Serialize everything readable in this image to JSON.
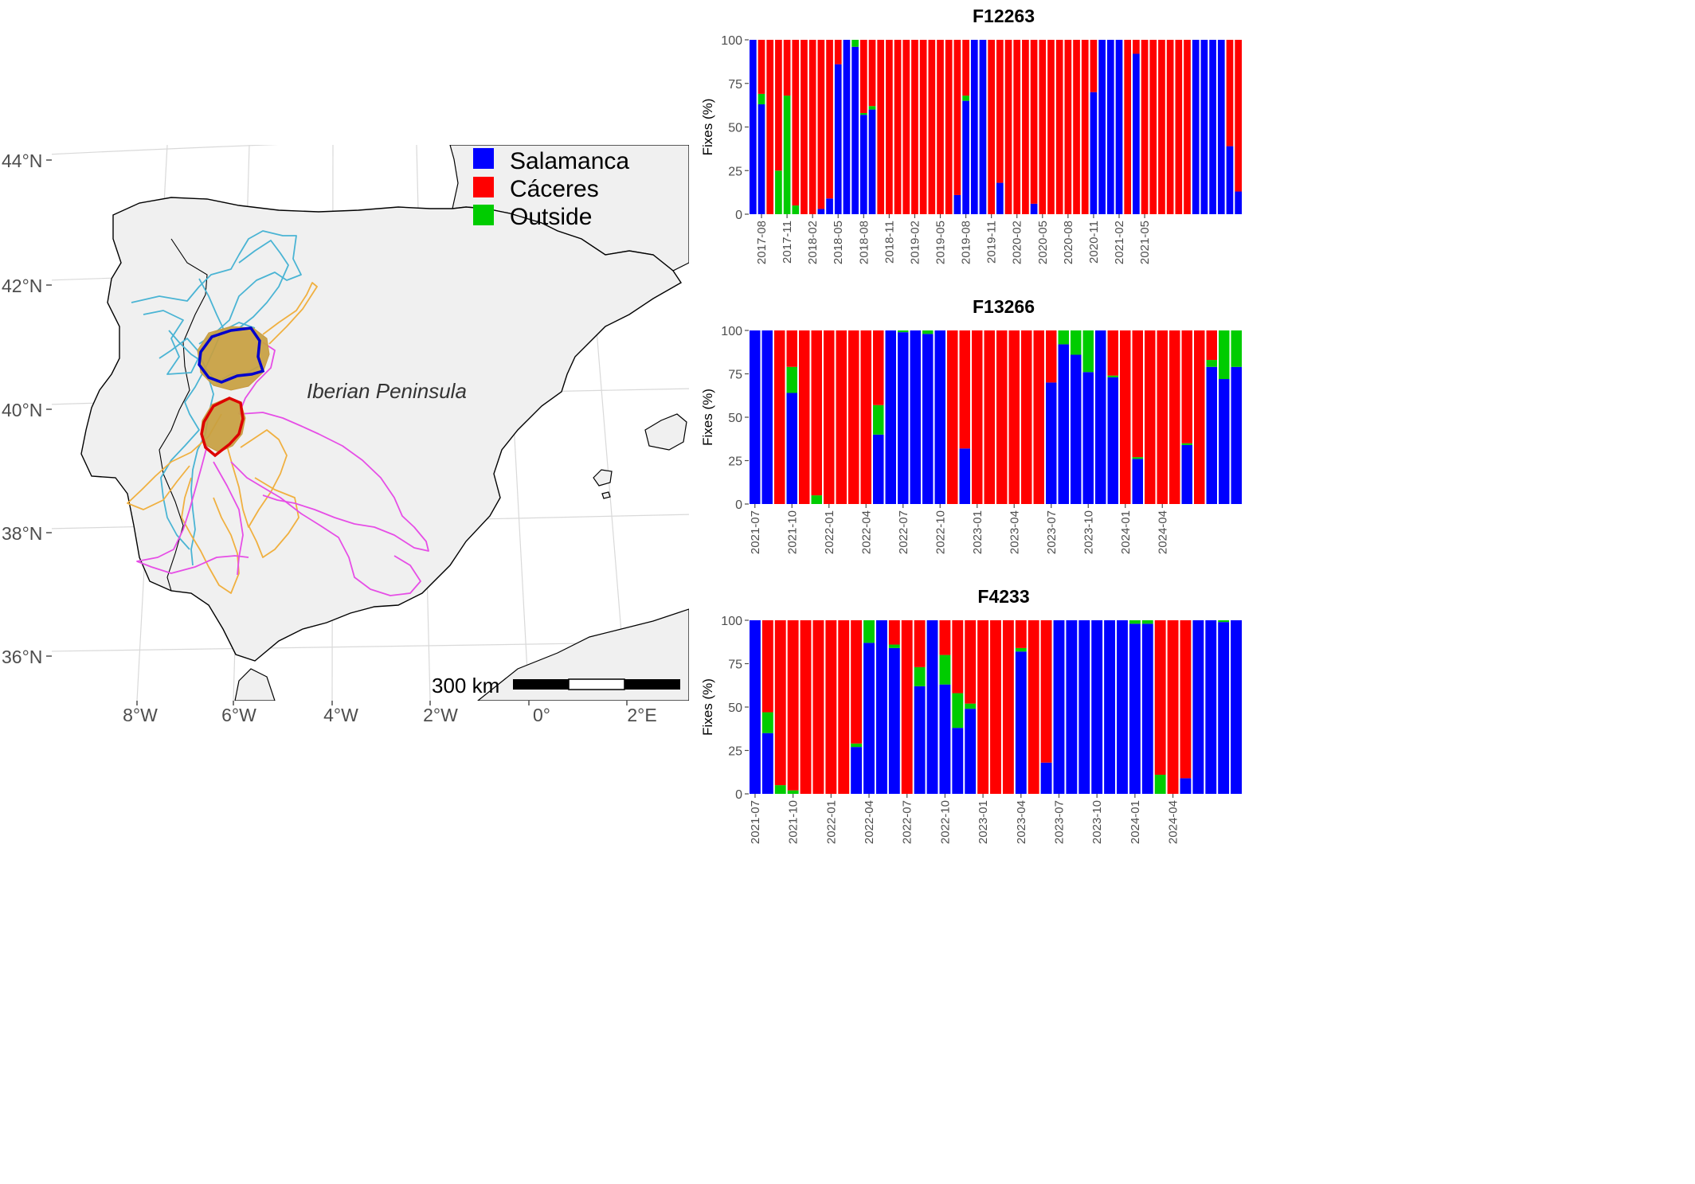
{
  "colors": {
    "salamanca": "#0000ff",
    "caceres": "#ff0000",
    "outside": "#00cc00",
    "track_cyan": "#4ab4d4",
    "track_orange": "#f0b040",
    "track_magenta": "#e64ee6",
    "core_fill": "#c8a040",
    "land": "#f0f0f0",
    "grid": "#d9d9d9"
  },
  "map": {
    "region_label": "Iberian Peninsula",
    "scale_label": "300 km",
    "lat_labels": [
      "44°N",
      "42°N",
      "40°N",
      "38°N",
      "36°N"
    ],
    "lon_labels": [
      "8°W",
      "6°W",
      "4°W",
      "2°W",
      "0°",
      "2°E"
    ],
    "legend": [
      {
        "key": "salamanca",
        "label": "Salamanca"
      },
      {
        "key": "caceres",
        "label": "Cáceres"
      },
      {
        "key": "outside",
        "label": "Outside"
      }
    ]
  },
  "chart_data": [
    {
      "type": "bar",
      "stacked": true,
      "title": "F12263",
      "ylabel": "Fixes (%)",
      "ylim": [
        0,
        100
      ],
      "yticks": [
        0,
        25,
        50,
        75,
        100
      ],
      "x_tick_labels": [
        "2017-08",
        "2017-11",
        "2018-02",
        "2018-05",
        "2018-08",
        "2018-11",
        "2019-02",
        "2019-05",
        "2019-08",
        "2019-11",
        "2020-02",
        "2020-05",
        "2020-08",
        "2020-11",
        "2021-02",
        "2021-05"
      ],
      "series": [
        {
          "name": "Salamanca",
          "values": [
            100,
            63,
            0,
            0,
            0,
            0,
            0,
            0,
            3,
            9,
            86,
            100,
            96,
            57,
            60,
            0,
            0,
            0,
            0,
            0,
            0,
            0,
            0,
            0,
            11,
            65,
            100,
            100,
            0,
            18,
            0,
            0,
            0,
            6,
            0,
            0,
            0,
            0,
            0,
            0,
            70,
            100,
            100,
            100,
            0,
            92,
            0,
            0,
            0,
            0,
            0,
            0,
            100,
            100,
            100,
            100,
            39,
            13
          ]
        },
        {
          "name": "Outside",
          "values": [
            0,
            6,
            0,
            25,
            68,
            5,
            0,
            0,
            0,
            0,
            0,
            0,
            4,
            1,
            2,
            0,
            0,
            0,
            0,
            0,
            0,
            0,
            0,
            0,
            0,
            3,
            0,
            0,
            0,
            0,
            0,
            0,
            0,
            0,
            0,
            0,
            0,
            0,
            0,
            0,
            0,
            0,
            0,
            0,
            0,
            0,
            0,
            0,
            0,
            0,
            0,
            0,
            0,
            0,
            0,
            0,
            0,
            0
          ]
        },
        {
          "name": "Cáceres",
          "values": [
            0,
            31,
            100,
            75,
            32,
            95,
            100,
            100,
            97,
            91,
            14,
            0,
            0,
            42,
            38,
            100,
            100,
            100,
            100,
            100,
            100,
            100,
            100,
            100,
            89,
            32,
            0,
            0,
            100,
            82,
            100,
            100,
            100,
            94,
            100,
            100,
            100,
            100,
            100,
            100,
            30,
            0,
            0,
            0,
            100,
            8,
            100,
            100,
            100,
            100,
            100,
            100,
            0,
            0,
            0,
            0,
            61,
            87
          ]
        }
      ]
    },
    {
      "type": "bar",
      "stacked": true,
      "title": "F13266",
      "ylabel": "Fixes (%)",
      "ylim": [
        0,
        100
      ],
      "yticks": [
        0,
        25,
        50,
        75,
        100
      ],
      "x_tick_labels": [
        "2021-07",
        "2021-10",
        "2022-01",
        "2022-04",
        "2022-07",
        "2022-10",
        "2023-01",
        "2023-04",
        "2023-07",
        "2023-10",
        "2024-01",
        "2024-04"
      ],
      "series": [
        {
          "name": "Salamanca",
          "values": [
            100,
            100,
            0,
            64,
            0,
            0,
            0,
            0,
            0,
            0,
            40,
            100,
            99,
            100,
            98,
            100,
            0,
            32,
            0,
            0,
            0,
            0,
            0,
            0,
            70,
            92,
            86,
            76,
            100,
            73,
            0,
            26,
            0,
            0,
            0,
            34,
            0,
            79,
            72,
            79
          ]
        },
        {
          "name": "Outside",
          "values": [
            0,
            0,
            0,
            15,
            0,
            5,
            0,
            0,
            0,
            0,
            17,
            0,
            1,
            0,
            2,
            0,
            0,
            0,
            0,
            0,
            0,
            0,
            0,
            0,
            0,
            8,
            14,
            24,
            0,
            1,
            0,
            1,
            0,
            0,
            0,
            1,
            0,
            4,
            28,
            21
          ]
        },
        {
          "name": "Cáceres",
          "values": [
            0,
            0,
            100,
            21,
            100,
            95,
            100,
            100,
            100,
            100,
            43,
            0,
            0,
            0,
            0,
            0,
            100,
            68,
            100,
            100,
            100,
            100,
            100,
            100,
            30,
            0,
            0,
            0,
            0,
            26,
            100,
            73,
            100,
            100,
            100,
            65,
            100,
            17,
            0,
            0
          ]
        }
      ]
    },
    {
      "type": "bar",
      "stacked": true,
      "title": "F4233",
      "ylabel": "Fixes (%)",
      "ylim": [
        0,
        100
      ],
      "yticks": [
        0,
        25,
        50,
        75,
        100
      ],
      "x_tick_labels": [
        "2021-07",
        "2021-10",
        "2022-01",
        "2022-04",
        "2022-07",
        "2022-10",
        "2023-01",
        "2023-04",
        "2023-07",
        "2023-10",
        "2024-01",
        "2024-04"
      ],
      "series": [
        {
          "name": "Salamanca",
          "values": [
            100,
            35,
            0,
            0,
            0,
            0,
            0,
            0,
            27,
            87,
            100,
            84,
            0,
            62,
            100,
            63,
            38,
            49,
            0,
            0,
            0,
            82,
            0,
            18,
            100,
            100,
            100,
            100,
            100,
            100,
            98,
            98,
            0,
            0,
            9,
            100,
            100,
            99,
            100
          ]
        },
        {
          "name": "Outside",
          "values": [
            0,
            12,
            5,
            2,
            0,
            0,
            0,
            0,
            2,
            13,
            0,
            2,
            0,
            11,
            0,
            17,
            20,
            3,
            0,
            0,
            0,
            2,
            0,
            0,
            0,
            0,
            0,
            0,
            0,
            0,
            2,
            2,
            11,
            0,
            0,
            0,
            0,
            1,
            0
          ]
        },
        {
          "name": "Cáceres",
          "values": [
            0,
            53,
            95,
            98,
            100,
            100,
            100,
            100,
            71,
            0,
            0,
            14,
            100,
            27,
            0,
            20,
            42,
            48,
            100,
            100,
            100,
            16,
            100,
            82,
            0,
            0,
            0,
            0,
            0,
            0,
            0,
            0,
            89,
            100,
            91,
            0,
            0,
            0,
            0
          ]
        }
      ]
    }
  ]
}
